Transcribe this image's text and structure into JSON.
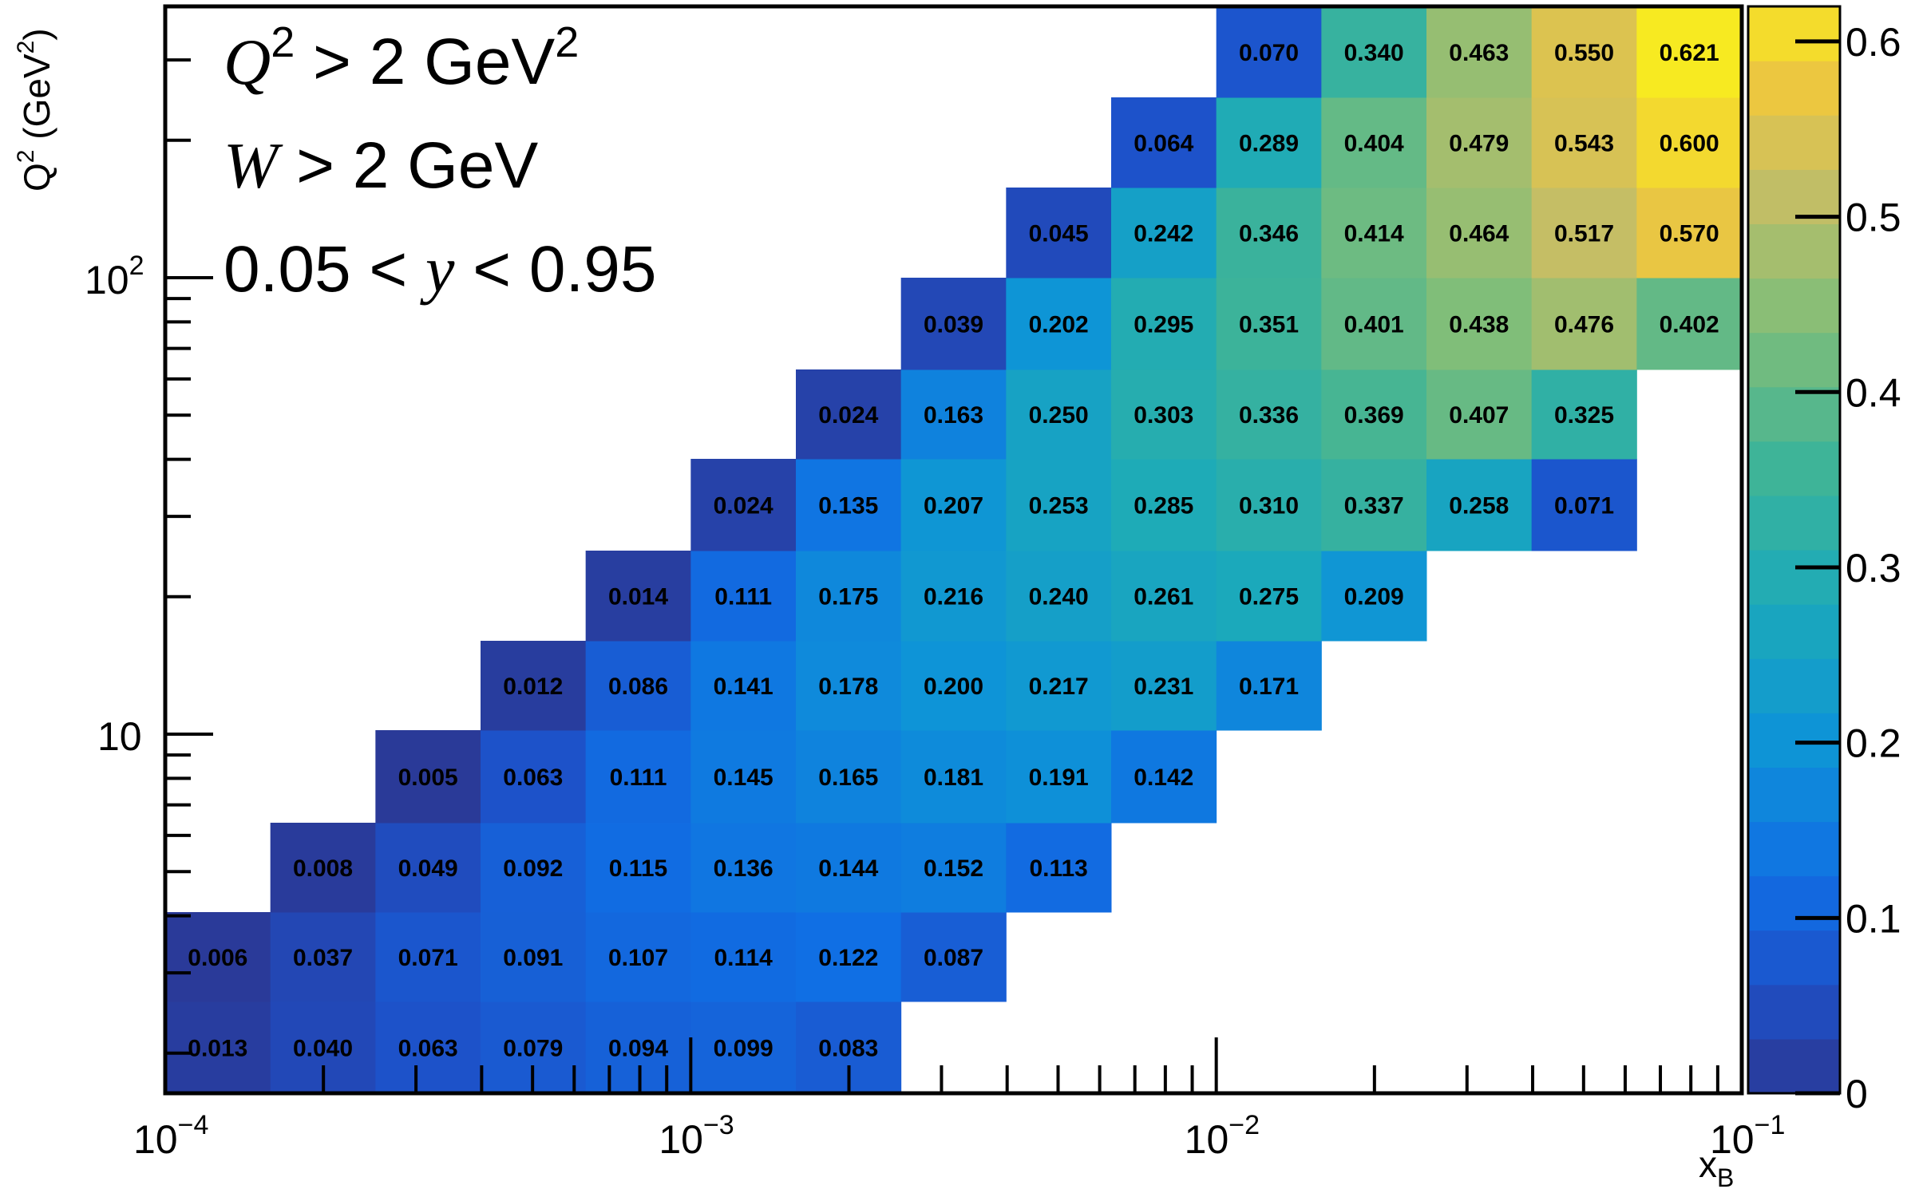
{
  "chart_data": {
    "type": "heatmap",
    "title": "",
    "xlabel": {
      "base": "x",
      "sub": "B"
    },
    "ylabel": {
      "base": "Q",
      "sup": "2",
      "unit_pre": " (GeV",
      "unit_sup": "2",
      "unit_post": ")"
    },
    "x_scale": "log",
    "y_scale": "log",
    "xlim": [
      0.0001,
      0.1
    ],
    "y_ticks_labeled": [
      {
        "value": 10,
        "base": "10",
        "exp": ""
      },
      {
        "value": 100,
        "base": "10",
        "exp": "2"
      }
    ],
    "x_ticks_labeled": [
      {
        "value": 0.0001,
        "base": "10",
        "exp": "−4"
      },
      {
        "value": 0.001,
        "base": "10",
        "exp": "−3"
      },
      {
        "value": 0.01,
        "base": "10",
        "exp": "−2"
      },
      {
        "value": 0.1,
        "base": "10",
        "exp": "−1"
      }
    ],
    "colorbar": {
      "min": 0,
      "max": 0.62,
      "ticks": [
        "0",
        "0.1",
        "0.2",
        "0.3",
        "0.4",
        "0.5",
        "0.6"
      ],
      "n_bins": 20
    },
    "annotations": [
      {
        "parts": [
          {
            "t": "Q",
            "math": true
          },
          {
            "t": "2",
            "sup": true
          },
          {
            "t": " > 2 GeV"
          },
          {
            "t": "2",
            "sup": true
          }
        ]
      },
      {
        "parts": [
          {
            "t": "W",
            "math": true
          },
          {
            "t": " > 2 GeV"
          }
        ]
      },
      {
        "parts": [
          {
            "t": "0.05 < "
          },
          {
            "t": "y",
            "math": true
          },
          {
            "t": " < 0.95"
          }
        ]
      }
    ],
    "rows": [
      {
        "start_col": 0,
        "values": [
          "0.013",
          "0.040",
          "0.063",
          "0.079",
          "0.094",
          "0.099",
          "0.083"
        ]
      },
      {
        "start_col": 0,
        "values": [
          "0.006",
          "0.037",
          "0.071",
          "0.091",
          "0.107",
          "0.114",
          "0.122",
          "0.087"
        ]
      },
      {
        "start_col": 1,
        "values": [
          "0.008",
          "0.049",
          "0.092",
          "0.115",
          "0.136",
          "0.144",
          "0.152",
          "0.113"
        ]
      },
      {
        "start_col": 2,
        "values": [
          "0.005",
          "0.063",
          "0.111",
          "0.145",
          "0.165",
          "0.181",
          "0.191",
          "0.142"
        ]
      },
      {
        "start_col": 3,
        "values": [
          "0.012",
          "0.086",
          "0.141",
          "0.178",
          "0.200",
          "0.217",
          "0.231",
          "0.171"
        ]
      },
      {
        "start_col": 4,
        "values": [
          "0.014",
          "0.111",
          "0.175",
          "0.216",
          "0.240",
          "0.261",
          "0.275",
          "0.209"
        ]
      },
      {
        "start_col": 5,
        "values": [
          "0.024",
          "0.135",
          "0.207",
          "0.253",
          "0.285",
          "0.310",
          "0.337",
          "0.258",
          "0.071"
        ]
      },
      {
        "start_col": 6,
        "values": [
          "0.024",
          "0.163",
          "0.250",
          "0.303",
          "0.336",
          "0.369",
          "0.407",
          "0.325"
        ]
      },
      {
        "start_col": 7,
        "values": [
          "0.039",
          "0.202",
          "0.295",
          "0.351",
          "0.401",
          "0.438",
          "0.476",
          "0.402"
        ]
      },
      {
        "start_col": 8,
        "values": [
          "0.045",
          "0.242",
          "0.346",
          "0.414",
          "0.464",
          "0.517",
          "0.570"
        ]
      },
      {
        "start_col": 9,
        "values": [
          "0.064",
          "0.289",
          "0.404",
          "0.479",
          "0.543",
          "0.600"
        ]
      },
      {
        "start_col": 10,
        "values": [
          "0.070",
          "0.340",
          "0.463",
          "0.550",
          "0.621"
        ]
      }
    ]
  }
}
